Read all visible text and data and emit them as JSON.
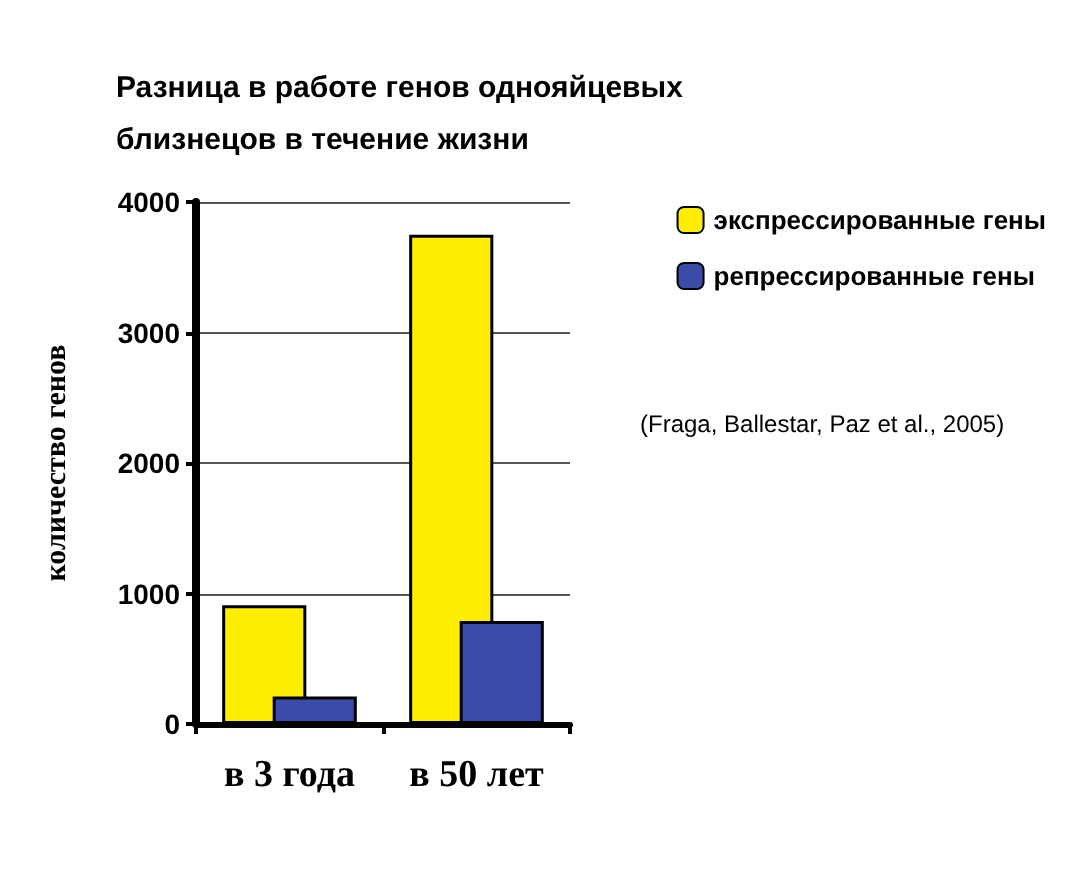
{
  "chart_data": {
    "type": "bar",
    "title": "Разница в работе генов однояйцевых\nблизнецов в течение жизни",
    "ylabel": "количество генов",
    "categories": [
      "в 3 года",
      "в 50 лет"
    ],
    "series": [
      {
        "name": "экспрессированные гены",
        "color": "#ffee00",
        "values": [
          910,
          3750
        ]
      },
      {
        "name": "репрессированные гены",
        "color": "#3b4ca8",
        "values": [
          210,
          790
        ]
      }
    ],
    "ylim": [
      0,
      4000
    ],
    "yticks": [
      0,
      1000,
      2000,
      3000,
      4000
    ],
    "grid": "y",
    "legend": "right",
    "annotations": [
      "(Fraga, Ballestar, Paz et al., 2005)"
    ]
  }
}
